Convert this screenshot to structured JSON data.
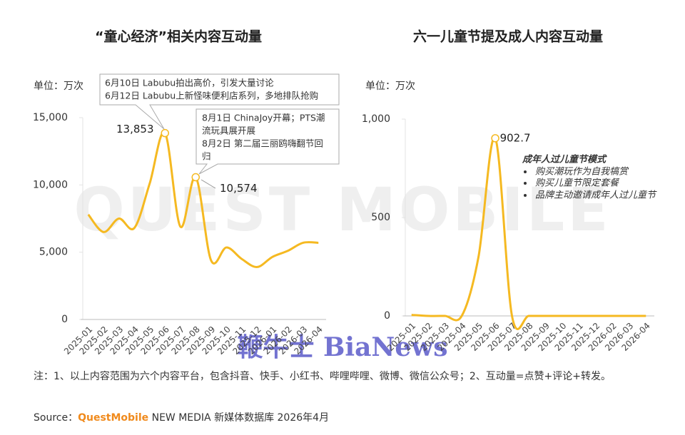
{
  "watermarks": [
    "QUEST MOBILE",
    "鞭牛士 BiaNews"
  ],
  "chart_data": [
    {
      "type": "line",
      "title": "“童心经济”相关内容互动量",
      "y_label": "单位：万次",
      "categories": [
        "2025-01",
        "2025-02",
        "2025-03",
        "2025-04",
        "2025-05",
        "2025-06",
        "2025-07",
        "2025-08",
        "2025-09",
        "2025-10",
        "2025-11",
        "2025-12",
        "2026-01",
        "2026-02",
        "2026-03",
        "2026-04"
      ],
      "values": [
        7800,
        6500,
        7500,
        6800,
        10100,
        13853,
        6900,
        10574,
        4400,
        5350,
        4500,
        3900,
        4650,
        5100,
        5700,
        5700
      ],
      "value_labels": [
        null,
        null,
        null,
        null,
        null,
        "13,853",
        null,
        "10,574",
        null,
        null,
        null,
        null,
        null,
        null,
        null,
        null
      ],
      "color": "#f5b921",
      "ylim": [
        0,
        15000
      ],
      "yticks": [
        0,
        {
          "value": 5000,
          "label": "5,000"
        },
        {
          "value": 10000,
          "label": "10,000"
        },
        {
          "value": 15000,
          "label": "15,000"
        }
      ],
      "annotations": [
        [
          "6月10日 Labubu拍出高价，引发大量讨论",
          "6月12日 Labubu上新怪味便利店系列，多地排队抢购"
        ],
        [
          "8月1日 ChinaJoy开幕；PTS潮",
          "流玩具展开展",
          "8月2日 第二届三丽鸥嗨翻节回",
          "归"
        ]
      ]
    },
    {
      "type": "line",
      "title": "六一儿童节提及成人内容互动量",
      "y_label": "单位：万次",
      "categories": [
        "2025-01",
        "2025-02",
        "2025-03",
        "2025-04",
        "2025-05",
        "2025-06",
        "2025-07",
        "2025-08",
        "2025-09",
        "2025-10",
        "2025-11",
        "2025-12",
        "2026-02",
        "2026-03",
        "2026-04"
      ],
      "values": [
        5,
        0,
        0,
        0,
        300,
        902.7,
        0,
        0,
        0,
        0,
        0,
        0,
        0,
        0,
        0
      ],
      "value_labels": [
        null,
        null,
        null,
        null,
        null,
        "902.7",
        null,
        null,
        null,
        null,
        null,
        null,
        null,
        null,
        null
      ],
      "color": "#f5b921",
      "ylim": [
        0,
        1000
      ],
      "yticks": [
        0,
        500,
        {
          "value": 1000,
          "label": "1,000"
        }
      ],
      "annotation": {
        "title": "成年人过儿童节模式",
        "items": [
          "购买潮玩作为自我犒赏",
          "购买儿童节限定套餐",
          "品牌主动邀请成年人过儿童节"
        ]
      }
    }
  ],
  "note": "注：1、以上内容范围为六个内容平台，包含抖音、快手、小红书、哔哩哔哩、微博、微信公众号；2、互动量=点赞+评论+转发。",
  "source": [
    "Source：",
    "QuestMobile",
    " NEW MEDIA 新媒体数据库 2026年4月"
  ]
}
